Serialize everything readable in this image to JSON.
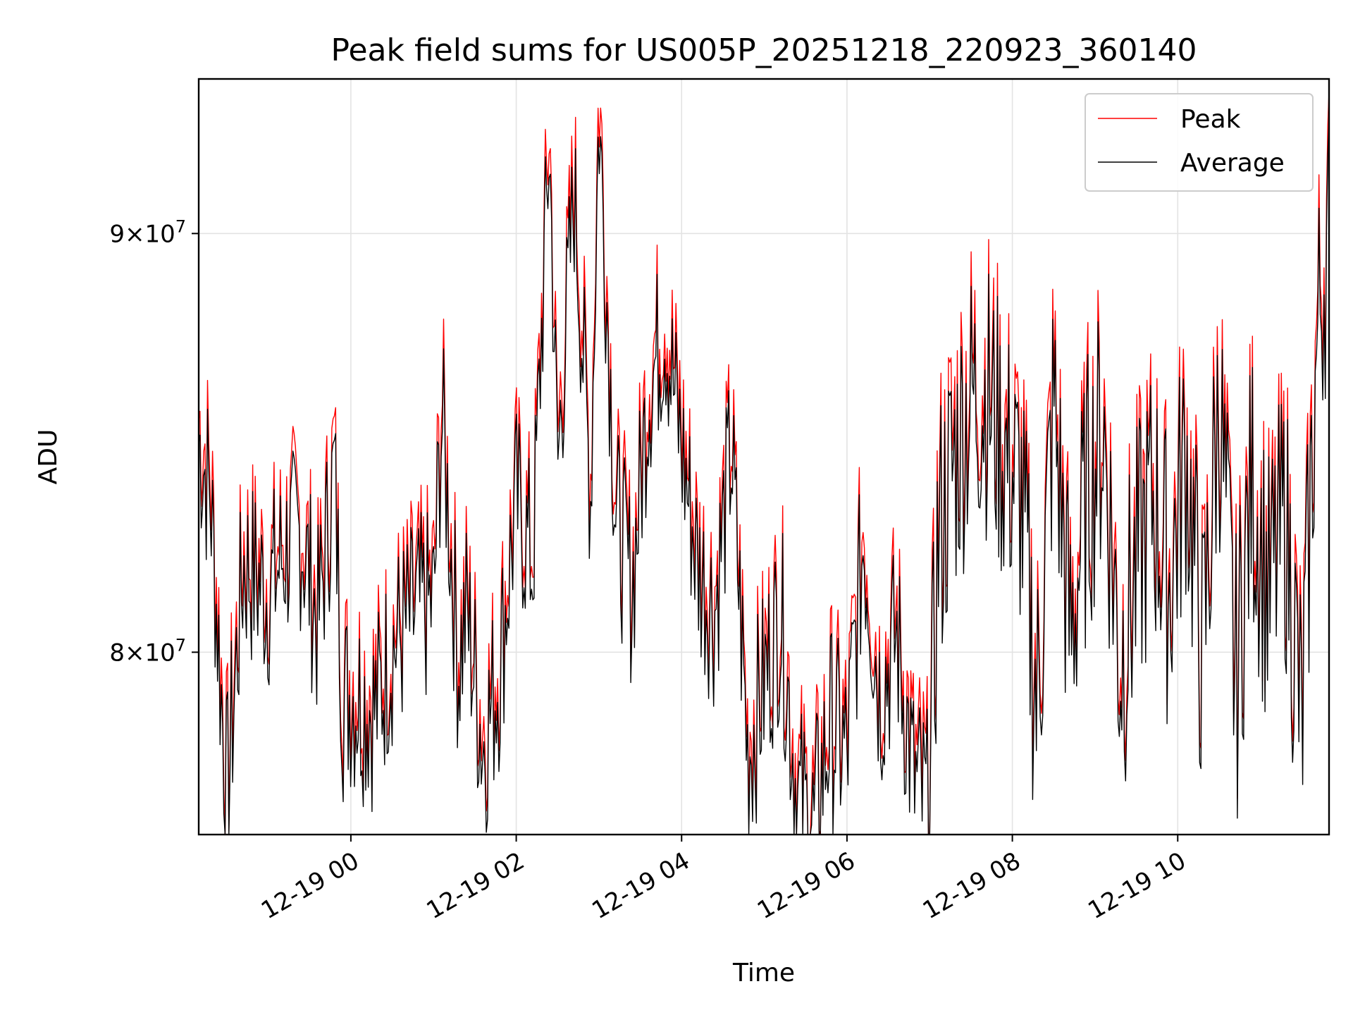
{
  "chart_data": {
    "type": "line",
    "title": "Peak field sums for US005P_20251218_220923_360140",
    "xlabel": "Time",
    "ylabel": "ADU",
    "yscale": "log",
    "ylim": [
      76000000,
      94000000
    ],
    "xlim_hours": [
      -1.84,
      11.83
    ],
    "grid": true,
    "legend_position": "top-right",
    "x_ticks": [
      {
        "hour": 0,
        "label": "12-19 00"
      },
      {
        "hour": 2,
        "label": "12-19 02"
      },
      {
        "hour": 4,
        "label": "12-19 04"
      },
      {
        "hour": 6,
        "label": "12-19 06"
      },
      {
        "hour": 8,
        "label": "12-19 08"
      },
      {
        "hour": 10,
        "label": "12-19 10"
      }
    ],
    "y_ticks": [
      {
        "value": 80000000,
        "mantissa": "8",
        "base": "10",
        "exponent": "7"
      },
      {
        "value": 90000000,
        "mantissa": "9",
        "base": "10",
        "exponent": "7"
      }
    ],
    "x_hours": [
      -1.84,
      -1.7,
      -1.5,
      -1.3,
      -1.0,
      -0.8,
      -0.6,
      -0.4,
      -0.2,
      -0.1,
      0.0,
      0.3,
      0.5,
      0.8,
      1.0,
      1.1,
      1.3,
      1.4,
      1.6,
      1.8,
      2.0,
      2.2,
      2.4,
      2.5,
      2.7,
      2.9,
      3.0,
      3.2,
      3.4,
      3.6,
      3.8,
      4.0,
      4.2,
      4.4,
      4.6,
      4.8,
      5.0,
      5.2,
      5.4,
      5.6,
      5.8,
      6.0,
      6.2,
      6.4,
      6.6,
      6.8,
      7.0,
      7.1,
      7.3,
      7.5,
      7.7,
      7.9,
      8.1,
      8.3,
      8.5,
      8.7,
      8.9,
      9.1,
      9.3,
      9.5,
      9.7,
      9.9,
      10.1,
      10.3,
      10.5,
      10.7,
      10.9,
      11.1,
      11.3,
      11.5,
      11.7,
      11.83
    ],
    "series": [
      {
        "name": "Peak",
        "color": "#ff0000",
        "values": [
          85200000,
          84000000,
          77000000,
          82300000,
          81600000,
          82600000,
          82900000,
          80900000,
          84500000,
          79200000,
          79400000,
          79000000,
          80300000,
          81200000,
          81400000,
          85900000,
          80000000,
          81200000,
          78200000,
          79900000,
          83800000,
          82300000,
          92700000,
          84600000,
          91500000,
          84000000,
          93600000,
          83500000,
          81700000,
          86500000,
          88100000,
          85100000,
          82200000,
          81200000,
          85000000,
          78000000,
          79600000,
          81200000,
          77000000,
          76400000,
          78700000,
          78000000,
          82900000,
          79300000,
          80700000,
          77500000,
          76800000,
          82900000,
          84900000,
          86400000,
          86500000,
          85000000,
          84000000,
          79000000,
          86200000,
          80500000,
          84000000,
          85600000,
          80000000,
          82200000,
          84000000,
          81800000,
          85000000,
          80000000,
          86300000,
          79500000,
          84300000,
          81500000,
          83500000,
          78500000,
          88300000,
          90500000
        ]
      },
      {
        "name": "Average",
        "color": "#000000",
        "values": [
          84900000,
          83600000,
          76700000,
          82000000,
          81300000,
          82300000,
          82700000,
          80600000,
          84200000,
          78900000,
          79100000,
          78700000,
          80100000,
          80900000,
          81100000,
          85500000,
          79700000,
          80900000,
          77900000,
          79600000,
          83500000,
          82000000,
          92300000,
          84200000,
          91000000,
          83600000,
          93100000,
          83200000,
          81400000,
          86100000,
          87700000,
          84700000,
          81900000,
          80900000,
          84700000,
          77700000,
          79300000,
          80900000,
          76700000,
          76100000,
          78400000,
          77700000,
          82600000,
          79000000,
          80400000,
          77200000,
          76400000,
          82500000,
          84400000,
          85900000,
          86000000,
          84600000,
          83600000,
          78700000,
          85800000,
          80200000,
          83600000,
          85200000,
          79700000,
          81800000,
          83600000,
          81500000,
          84600000,
          79700000,
          85900000,
          79200000,
          83900000,
          81200000,
          83100000,
          78200000,
          87800000,
          90100000
        ]
      }
    ]
  }
}
